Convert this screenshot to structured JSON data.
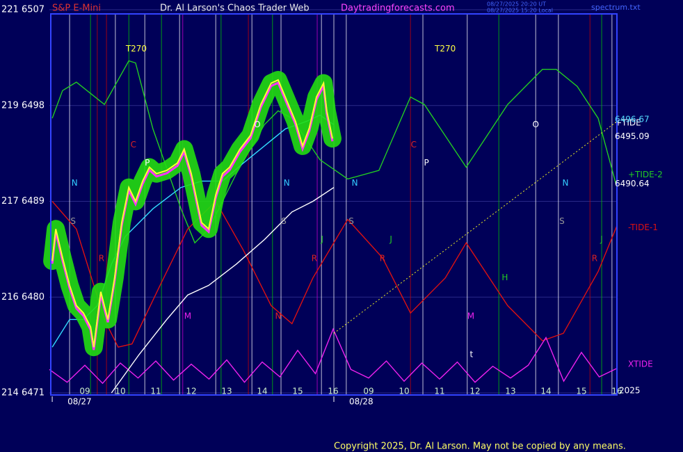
{
  "chart_data": {
    "type": "line",
    "symbol": "S&P E-Mini",
    "title": "Dr. Al Larson's Chaos Trader Web",
    "site": "Daytradingforecasts.com",
    "timestamps": [
      "08/27/2025 20:20 UT",
      "08/27/2025 15:20 Local"
    ],
    "file": "spectrum.txt",
    "copyright": "Copyright 2025, Dr. Al Larson. May not be copied by any means.",
    "year_label": "2025",
    "tide_label": "+TIDE",
    "ylim": [
      6471,
      6507
    ],
    "yticks": [
      {
        "value": 6507,
        "label": "221  6507"
      },
      {
        "value": 6498,
        "label": "219  6498"
      },
      {
        "value": 6489,
        "label": "217  6489"
      },
      {
        "value": 6480,
        "label": "216  6480"
      },
      {
        "value": 6471,
        "label": "214  6471"
      }
    ],
    "xlim": [
      0,
      16
    ],
    "xticks": [
      {
        "value": 1,
        "label": "09"
      },
      {
        "value": 2,
        "label": "10"
      },
      {
        "value": 3,
        "label": "11"
      },
      {
        "value": 4,
        "label": "12"
      },
      {
        "value": 5,
        "label": "13"
      },
      {
        "value": 6,
        "label": "14"
      },
      {
        "value": 7,
        "label": "15"
      },
      {
        "value": 8,
        "label": "16"
      },
      {
        "value": 9,
        "label": "09"
      },
      {
        "value": 10,
        "label": "10"
      },
      {
        "value": 11,
        "label": "11"
      },
      {
        "value": 12,
        "label": "12"
      },
      {
        "value": 13,
        "label": "13"
      },
      {
        "value": 14,
        "label": "14"
      },
      {
        "value": 15,
        "label": "15"
      },
      {
        "value": 16,
        "label": "16"
      }
    ],
    "dateticks": [
      {
        "value": 0.08,
        "label": "08/27"
      },
      {
        "value": 8.02,
        "label": "08/28"
      }
    ],
    "grid": true,
    "background": "#000058",
    "frame_color": "#3344ff",
    "vlines": [
      {
        "x": 0.57,
        "color": "#ffffff"
      },
      {
        "x": 1.86,
        "color": "#ffffff"
      },
      {
        "x": 2.69,
        "color": "#ffffff"
      },
      {
        "x": 3.67,
        "color": "#ffffff"
      },
      {
        "x": 4.69,
        "color": "#ffffff"
      },
      {
        "x": 5.71,
        "color": "#ffffff"
      },
      {
        "x": 6.53,
        "color": "#ffffff"
      },
      {
        "x": 7.67,
        "color": "#ffffff"
      },
      {
        "x": 8.02,
        "color": "#ffffff"
      },
      {
        "x": 8.37,
        "color": "#ffffff"
      },
      {
        "x": 10.53,
        "color": "#ffffff"
      },
      {
        "x": 11.78,
        "color": "#ffffff"
      },
      {
        "x": 13.71,
        "color": "#ffffff"
      },
      {
        "x": 14.35,
        "color": "#ffffff"
      },
      {
        "x": 15.86,
        "color": "#ffffff"
      },
      {
        "x": 1.16,
        "color": "#00cc00"
      },
      {
        "x": 2.24,
        "color": "#00cc00"
      },
      {
        "x": 3.16,
        "color": "#00cc00"
      },
      {
        "x": 4.84,
        "color": "#00cc00"
      },
      {
        "x": 6.29,
        "color": "#00cc00"
      },
      {
        "x": 12.67,
        "color": "#00cc00"
      },
      {
        "x": 15.57,
        "color": "#00cc00"
      },
      {
        "x": 1.35,
        "color": "#cc0000"
      },
      {
        "x": 1.61,
        "color": "#cc0000"
      },
      {
        "x": 5.61,
        "color": "#cc0000"
      },
      {
        "x": 10.18,
        "color": "#cc0000"
      },
      {
        "x": 15.24,
        "color": "#cc0000"
      },
      {
        "x": 3.76,
        "color": "#cc00cc"
      },
      {
        "x": 7.55,
        "color": "#cc00cc"
      }
    ],
    "series": [
      {
        "name": "+TIDE-2",
        "color": "#22cc22",
        "x": [
          0.08,
          0.37,
          0.76,
          1.55,
          2.24,
          2.43,
          2.92,
          3.71,
          4.1,
          4.49,
          5.27,
          6.06,
          6.45,
          6.84,
          7.63,
          8.41,
          9.29,
          10.18,
          10.57,
          11.75,
          12.92,
          13.9,
          14.29,
          14.88,
          15.47,
          16.0
        ],
        "values": [
          6496.8,
          6499.4,
          6500.2,
          6498.1,
          6502.2,
          6502.0,
          6495.8,
          6488.3,
          6485.1,
          6486.4,
          6491.6,
          6496.2,
          6497.5,
          6496.8,
          6492.9,
          6491.1,
          6491.9,
          6498.8,
          6498.1,
          6492.2,
          6498.1,
          6501.4,
          6501.4,
          6499.8,
          6496.8,
          6490.3
        ]
      },
      {
        "name": "-TIDE-1",
        "color": "#dd1111",
        "x": [
          0.08,
          0.76,
          1.55,
          1.94,
          2.33,
          3.12,
          3.9,
          4.69,
          5.47,
          6.25,
          6.84,
          7.43,
          8.41,
          9.39,
          10.18,
          11.16,
          11.75,
          12.92,
          13.9,
          14.49,
          15.47,
          16.0
        ],
        "values": [
          6489.0,
          6486.4,
          6477.9,
          6475.3,
          6475.6,
          6481.1,
          6486.4,
          6489.0,
          6484.4,
          6479.2,
          6477.5,
          6481.8,
          6487.3,
          6483.7,
          6478.5,
          6481.8,
          6485.1,
          6479.2,
          6475.9,
          6476.6,
          6482.4,
          6486.7
        ]
      },
      {
        "name": "XTIDE",
        "color": "#ee22ee",
        "x": [
          0,
          0.5,
          1,
          1.5,
          2,
          2.5,
          3,
          3.5,
          4,
          4.5,
          5,
          5.5,
          6,
          6.5,
          7,
          7.5,
          8,
          8.5,
          9,
          9.5,
          10,
          10.5,
          11,
          11.5,
          12,
          12.5,
          13,
          13.5,
          14,
          14.5,
          15,
          15.5,
          16
        ],
        "values": [
          6473.2,
          6472.0,
          6473.6,
          6471.9,
          6473.8,
          6472.4,
          6474.0,
          6472.2,
          6473.7,
          6472.3,
          6474.1,
          6472.0,
          6473.9,
          6472.5,
          6475.0,
          6472.8,
          6477.0,
          6473.2,
          6472.4,
          6474.0,
          6472.1,
          6473.8,
          6472.3,
          6473.9,
          6472.0,
          6473.5,
          6472.4,
          6473.6,
          6476.2,
          6472.1,
          6474.8,
          6472.5,
          6473.3
        ]
      },
      {
        "color": "#eeee22",
        "style": "dotted",
        "x": [
          8.02,
          16.0
        ],
        "values": [
          6476.6,
          6496.5
        ]
      },
      {
        "color": "#ffffff",
        "x": [
          1.75,
          2.53,
          3.31,
          3.9,
          4.49,
          5.27,
          6.06,
          6.84,
          7.43,
          8.02
        ],
        "values": [
          6471.0,
          6474.6,
          6477.9,
          6480.2,
          6481.1,
          6483.1,
          6485.4,
          6488.0,
          6489.0,
          6490.3
        ]
      },
      {
        "color": "#33ddff",
        "x": [
          0.08,
          0.57,
          0.96,
          1.35,
          1.75,
          2.14,
          2.92,
          3.71,
          4.29,
          4.88,
          5.47,
          6.06,
          6.65,
          7.24,
          7.63,
          8.02
        ],
        "values": [
          6475.3,
          6477.9,
          6477.9,
          6479.2,
          6483.1,
          6485.7,
          6488.3,
          6490.3,
          6490.9,
          6490.9,
          6492.6,
          6494.2,
          6495.8,
          6496.5,
          6497.1,
          6496.2
        ]
      },
      {
        "color": "#ffff33",
        "highlight_color": "#22dd11",
        "x": [
          0.08,
          0.18,
          0.37,
          0.57,
          0.76,
          0.96,
          1.16,
          1.25,
          1.45,
          1.65,
          1.84,
          2.04,
          2.24,
          2.43,
          2.63,
          2.82,
          3.02,
          3.31,
          3.61,
          3.8,
          4.0,
          4.29,
          4.49,
          4.69,
          4.88,
          5.08,
          5.37,
          5.67,
          5.96,
          6.25,
          6.45,
          6.65,
          6.94,
          7.14,
          7.33,
          7.53,
          7.73,
          7.82,
          7.98
        ],
        "values": [
          6483.4,
          6486.4,
          6483.7,
          6481.1,
          6479.2,
          6478.5,
          6477.2,
          6475.3,
          6480.5,
          6477.9,
          6481.8,
          6487.0,
          6490.3,
          6489.0,
          6490.9,
          6492.2,
          6491.6,
          6491.9,
          6492.6,
          6493.9,
          6491.6,
          6487.0,
          6486.4,
          6489.6,
          6491.6,
          6492.2,
          6493.9,
          6495.2,
          6498.1,
          6500.1,
          6500.4,
          6498.8,
          6496.5,
          6494.2,
          6495.9,
          6498.8,
          6500.1,
          6497.5,
          6494.9
        ]
      }
    ],
    "last_values": [
      {
        "value": 6496.67,
        "color": "#55ddff"
      },
      {
        "value": 6495.09,
        "color": "#ffffff"
      },
      {
        "value": 6490.64,
        "color": "#ffffff"
      }
    ],
    "annotations": [
      {
        "text": "N",
        "x": 0.71,
        "y": 6490.7,
        "color": "#33ccff"
      },
      {
        "text": "S",
        "x": 0.67,
        "y": 6487.1,
        "color": "#999999"
      },
      {
        "text": "T270",
        "x": 2.45,
        "y": 6503.3,
        "color": "#ffff44"
      },
      {
        "text": "C",
        "x": 2.37,
        "y": 6494.3,
        "color": "#dd2222"
      },
      {
        "text": "P",
        "x": 2.76,
        "y": 6492.6,
        "color": "#ffffff"
      },
      {
        "text": "R",
        "x": 1.47,
        "y": 6483.6,
        "color": "#dd2222"
      },
      {
        "text": "M",
        "x": 3.9,
        "y": 6478.2,
        "color": "#ee22ee"
      },
      {
        "text": "O",
        "x": 5.86,
        "y": 6496.2,
        "color": "#ffffff"
      },
      {
        "text": "N",
        "x": 6.69,
        "y": 6490.7,
        "color": "#33ccff"
      },
      {
        "text": "S",
        "x": 6.61,
        "y": 6487.1,
        "color": "#999999"
      },
      {
        "text": "R",
        "x": 7.47,
        "y": 6483.6,
        "color": "#dd2222"
      },
      {
        "text": "J",
        "x": 7.69,
        "y": 6485.4,
        "color": "#22cc22"
      },
      {
        "text": "N",
        "x": 6.45,
        "y": 6478.2,
        "color": "#dd2222"
      },
      {
        "text": "N",
        "x": 8.61,
        "y": 6490.7,
        "color": "#33ccff"
      },
      {
        "text": "S",
        "x": 8.51,
        "y": 6487.1,
        "color": "#999999"
      },
      {
        "text": "R",
        "x": 9.39,
        "y": 6483.6,
        "color": "#dd2222"
      },
      {
        "text": "J",
        "x": 9.63,
        "y": 6485.4,
        "color": "#22cc22"
      },
      {
        "text": "T270",
        "x": 11.16,
        "y": 6503.3,
        "color": "#ffff44"
      },
      {
        "text": "C",
        "x": 10.27,
        "y": 6494.3,
        "color": "#dd2222"
      },
      {
        "text": "P",
        "x": 10.63,
        "y": 6492.6,
        "color": "#ffffff"
      },
      {
        "text": "M",
        "x": 11.88,
        "y": 6478.2,
        "color": "#ee22ee"
      },
      {
        "text": "H",
        "x": 12.84,
        "y": 6481.8,
        "color": "#22cc22"
      },
      {
        "text": "O",
        "x": 13.71,
        "y": 6496.2,
        "color": "#ffffff"
      },
      {
        "text": "N",
        "x": 14.55,
        "y": 6490.7,
        "color": "#33ccff"
      },
      {
        "text": "S",
        "x": 14.45,
        "y": 6487.1,
        "color": "#999999"
      },
      {
        "text": "R",
        "x": 15.37,
        "y": 6483.6,
        "color": "#dd2222"
      },
      {
        "text": "J",
        "x": 15.57,
        "y": 6485.4,
        "color": "#22cc22"
      },
      {
        "text": "t",
        "x": 11.9,
        "y": 6474.6,
        "color": "#ffffff"
      }
    ]
  }
}
